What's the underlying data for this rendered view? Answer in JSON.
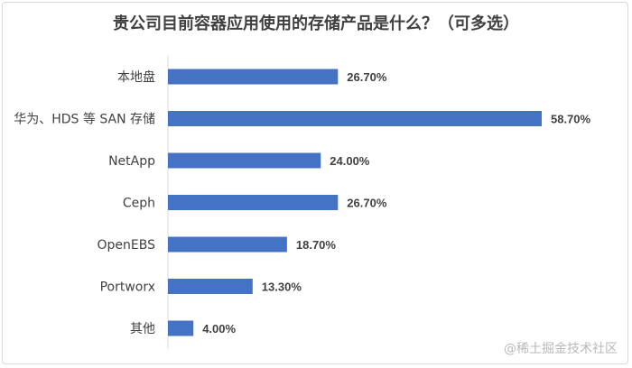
{
  "chart_data": {
    "type": "bar",
    "orientation": "horizontal",
    "title": "贵公司目前容器应用使用的存储产品是什么？（可多选）",
    "categories": [
      "本地盘",
      "华为、HDS 等 SAN 存储",
      "NetApp",
      "Ceph",
      "OpenEBS",
      "Portworx",
      "其他"
    ],
    "values": [
      26.7,
      58.7,
      24.0,
      26.7,
      18.7,
      13.3,
      4.0
    ],
    "value_labels": [
      "26.70%",
      "58.70%",
      "24.00%",
      "26.70%",
      "18.70%",
      "13.30%",
      "4.00%"
    ],
    "bar_color": "#4472c4",
    "grid": false,
    "legend": "none"
  },
  "watermark": "@稀土掘金技术社区"
}
